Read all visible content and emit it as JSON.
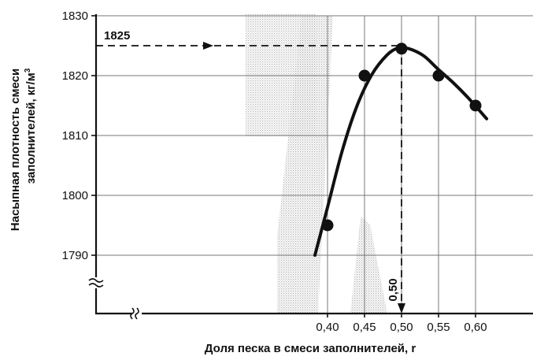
{
  "chart_data": {
    "type": "scatter",
    "title": "",
    "xlabel": "Доля песка в смеси заполнителей, r",
    "ylabel_line1": "Насыпная плотность смеси",
    "ylabel_line2": "заполнителей, кг/м",
    "ylabel_sup": "3",
    "x_ticks": [
      "0,40",
      "0,45",
      "0,50",
      "0,55",
      "0,60"
    ],
    "x_tick_values": [
      0.4,
      0.45,
      0.5,
      0.55,
      0.6
    ],
    "y_ticks": [
      "1830",
      "1820",
      "1810",
      "1800",
      "1790"
    ],
    "y_tick_values": [
      1830,
      1820,
      1810,
      1800,
      1790
    ],
    "xlim": [
      0.35,
      0.65
    ],
    "ylim": [
      1780,
      1830
    ],
    "grid": true,
    "axis_breaks": true,
    "points": [
      {
        "x": 0.4,
        "y": 1795
      },
      {
        "x": 0.45,
        "y": 1820
      },
      {
        "x": 0.5,
        "y": 1824.5
      },
      {
        "x": 0.55,
        "y": 1820
      },
      {
        "x": 0.6,
        "y": 1815
      }
    ],
    "fit_curve": [
      {
        "x": 0.383,
        "y": 1790
      },
      {
        "x": 0.4,
        "y": 1798
      },
      {
        "x": 0.42,
        "y": 1807.5
      },
      {
        "x": 0.44,
        "y": 1815
      },
      {
        "x": 0.46,
        "y": 1820.2
      },
      {
        "x": 0.48,
        "y": 1823.4
      },
      {
        "x": 0.495,
        "y": 1824.6
      },
      {
        "x": 0.51,
        "y": 1824.5
      },
      {
        "x": 0.53,
        "y": 1823.3
      },
      {
        "x": 0.55,
        "y": 1821
      },
      {
        "x": 0.57,
        "y": 1818.8
      },
      {
        "x": 0.59,
        "y": 1816.3
      },
      {
        "x": 0.615,
        "y": 1812.8
      }
    ],
    "optimum": {
      "x": 0.5,
      "y": 1825,
      "x_label": "0,50",
      "y_label": "1825"
    }
  }
}
